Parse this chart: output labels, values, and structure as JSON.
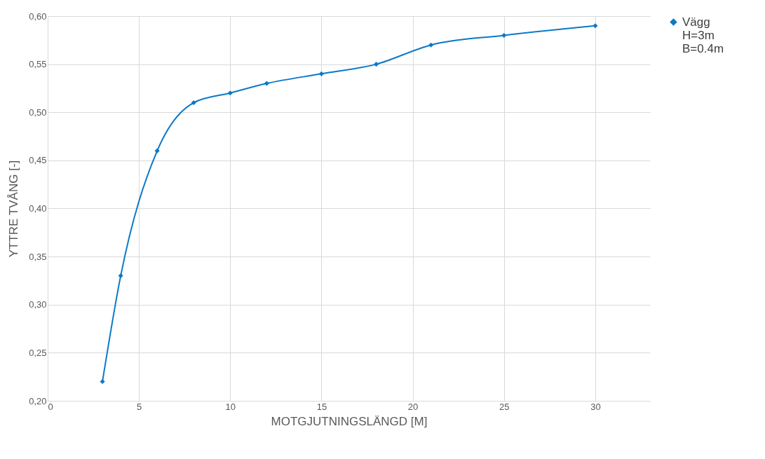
{
  "chart_data": {
    "type": "line",
    "xlabel": "MOTGJUTNINGSLÄNGD  [M]",
    "ylabel": "YTTRE TVÅNG  [-]",
    "x": [
      3,
      4,
      6,
      8,
      10,
      12,
      15,
      18,
      21,
      25,
      30
    ],
    "series": [
      {
        "name": "Vägg\nH=3m\nB=0.4m",
        "color": "#0a79c8",
        "values": [
          0.22,
          0.33,
          0.46,
          0.51,
          0.52,
          0.53,
          0.54,
          0.55,
          0.57,
          0.58,
          0.59
        ]
      }
    ],
    "xlim": [
      0,
      33
    ],
    "xticks": [
      0,
      5,
      10,
      15,
      20,
      25,
      30
    ],
    "ylim": [
      0.2,
      0.6
    ],
    "yticks": [
      {
        "value": 0.2,
        "label": "0,20"
      },
      {
        "value": 0.25,
        "label": "0,25"
      },
      {
        "value": 0.3,
        "label": "0,30"
      },
      {
        "value": 0.35,
        "label": "0,35"
      },
      {
        "value": 0.4,
        "label": "0,40"
      },
      {
        "value": 0.45,
        "label": "0,45"
      },
      {
        "value": 0.5,
        "label": "0,50"
      },
      {
        "value": 0.55,
        "label": "0,55"
      },
      {
        "value": 0.6,
        "label": "0,60"
      }
    ],
    "grid": true,
    "legend": "right",
    "marker": "diamond",
    "line_style": "solid"
  }
}
